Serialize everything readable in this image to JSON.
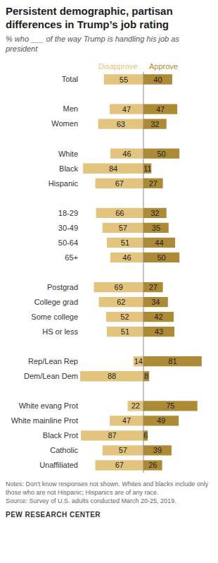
{
  "chart_data": {
    "type": "bar",
    "orientation": "horizontal",
    "title": "Persistent demographic, partisan differences in Trump’s job rating",
    "subtitle": "% who ___ of the way Trump is handling his job as president",
    "notes": "Notes: Don't know responses not shown. Whites and blacks include only those who are not Hispanic; Hispanics are of any race.",
    "source": "Source: Survey of U.S. adults conducted March 20-25, 2019.",
    "credit": "PEW RESEARCH CENTER",
    "categories": [
      "Total",
      null,
      "Men",
      "Women",
      null,
      "White",
      "Black",
      "Hispanic",
      null,
      "18-29",
      "30-49",
      "50-64",
      "65+",
      null,
      "Postgrad",
      "College grad",
      "Some college",
      "HS or less",
      null,
      "Rep/Lean Rep",
      "Dem/Lean Dem",
      null,
      "White evang Prot",
      "White mainline Prot",
      "Black Prot",
      "Catholic",
      "Unaffiliated"
    ],
    "series": [
      {
        "name": "Disapprove",
        "color": "#e2c47e",
        "values": [
          55,
          null,
          47,
          63,
          null,
          46,
          84,
          67,
          null,
          66,
          57,
          51,
          46,
          null,
          69,
          62,
          52,
          51,
          null,
          14,
          88,
          null,
          22,
          47,
          87,
          57,
          67
        ]
      },
      {
        "name": "Approve",
        "color": "#ad8a36",
        "values": [
          40,
          null,
          47,
          32,
          null,
          50,
          11,
          27,
          null,
          32,
          35,
          44,
          50,
          null,
          27,
          34,
          42,
          43,
          null,
          81,
          8,
          null,
          75,
          49,
          6,
          39,
          26
        ]
      }
    ],
    "xlim": [
      0,
      90
    ],
    "data_labels": true,
    "tick_labels": "y",
    "grid": false
  }
}
